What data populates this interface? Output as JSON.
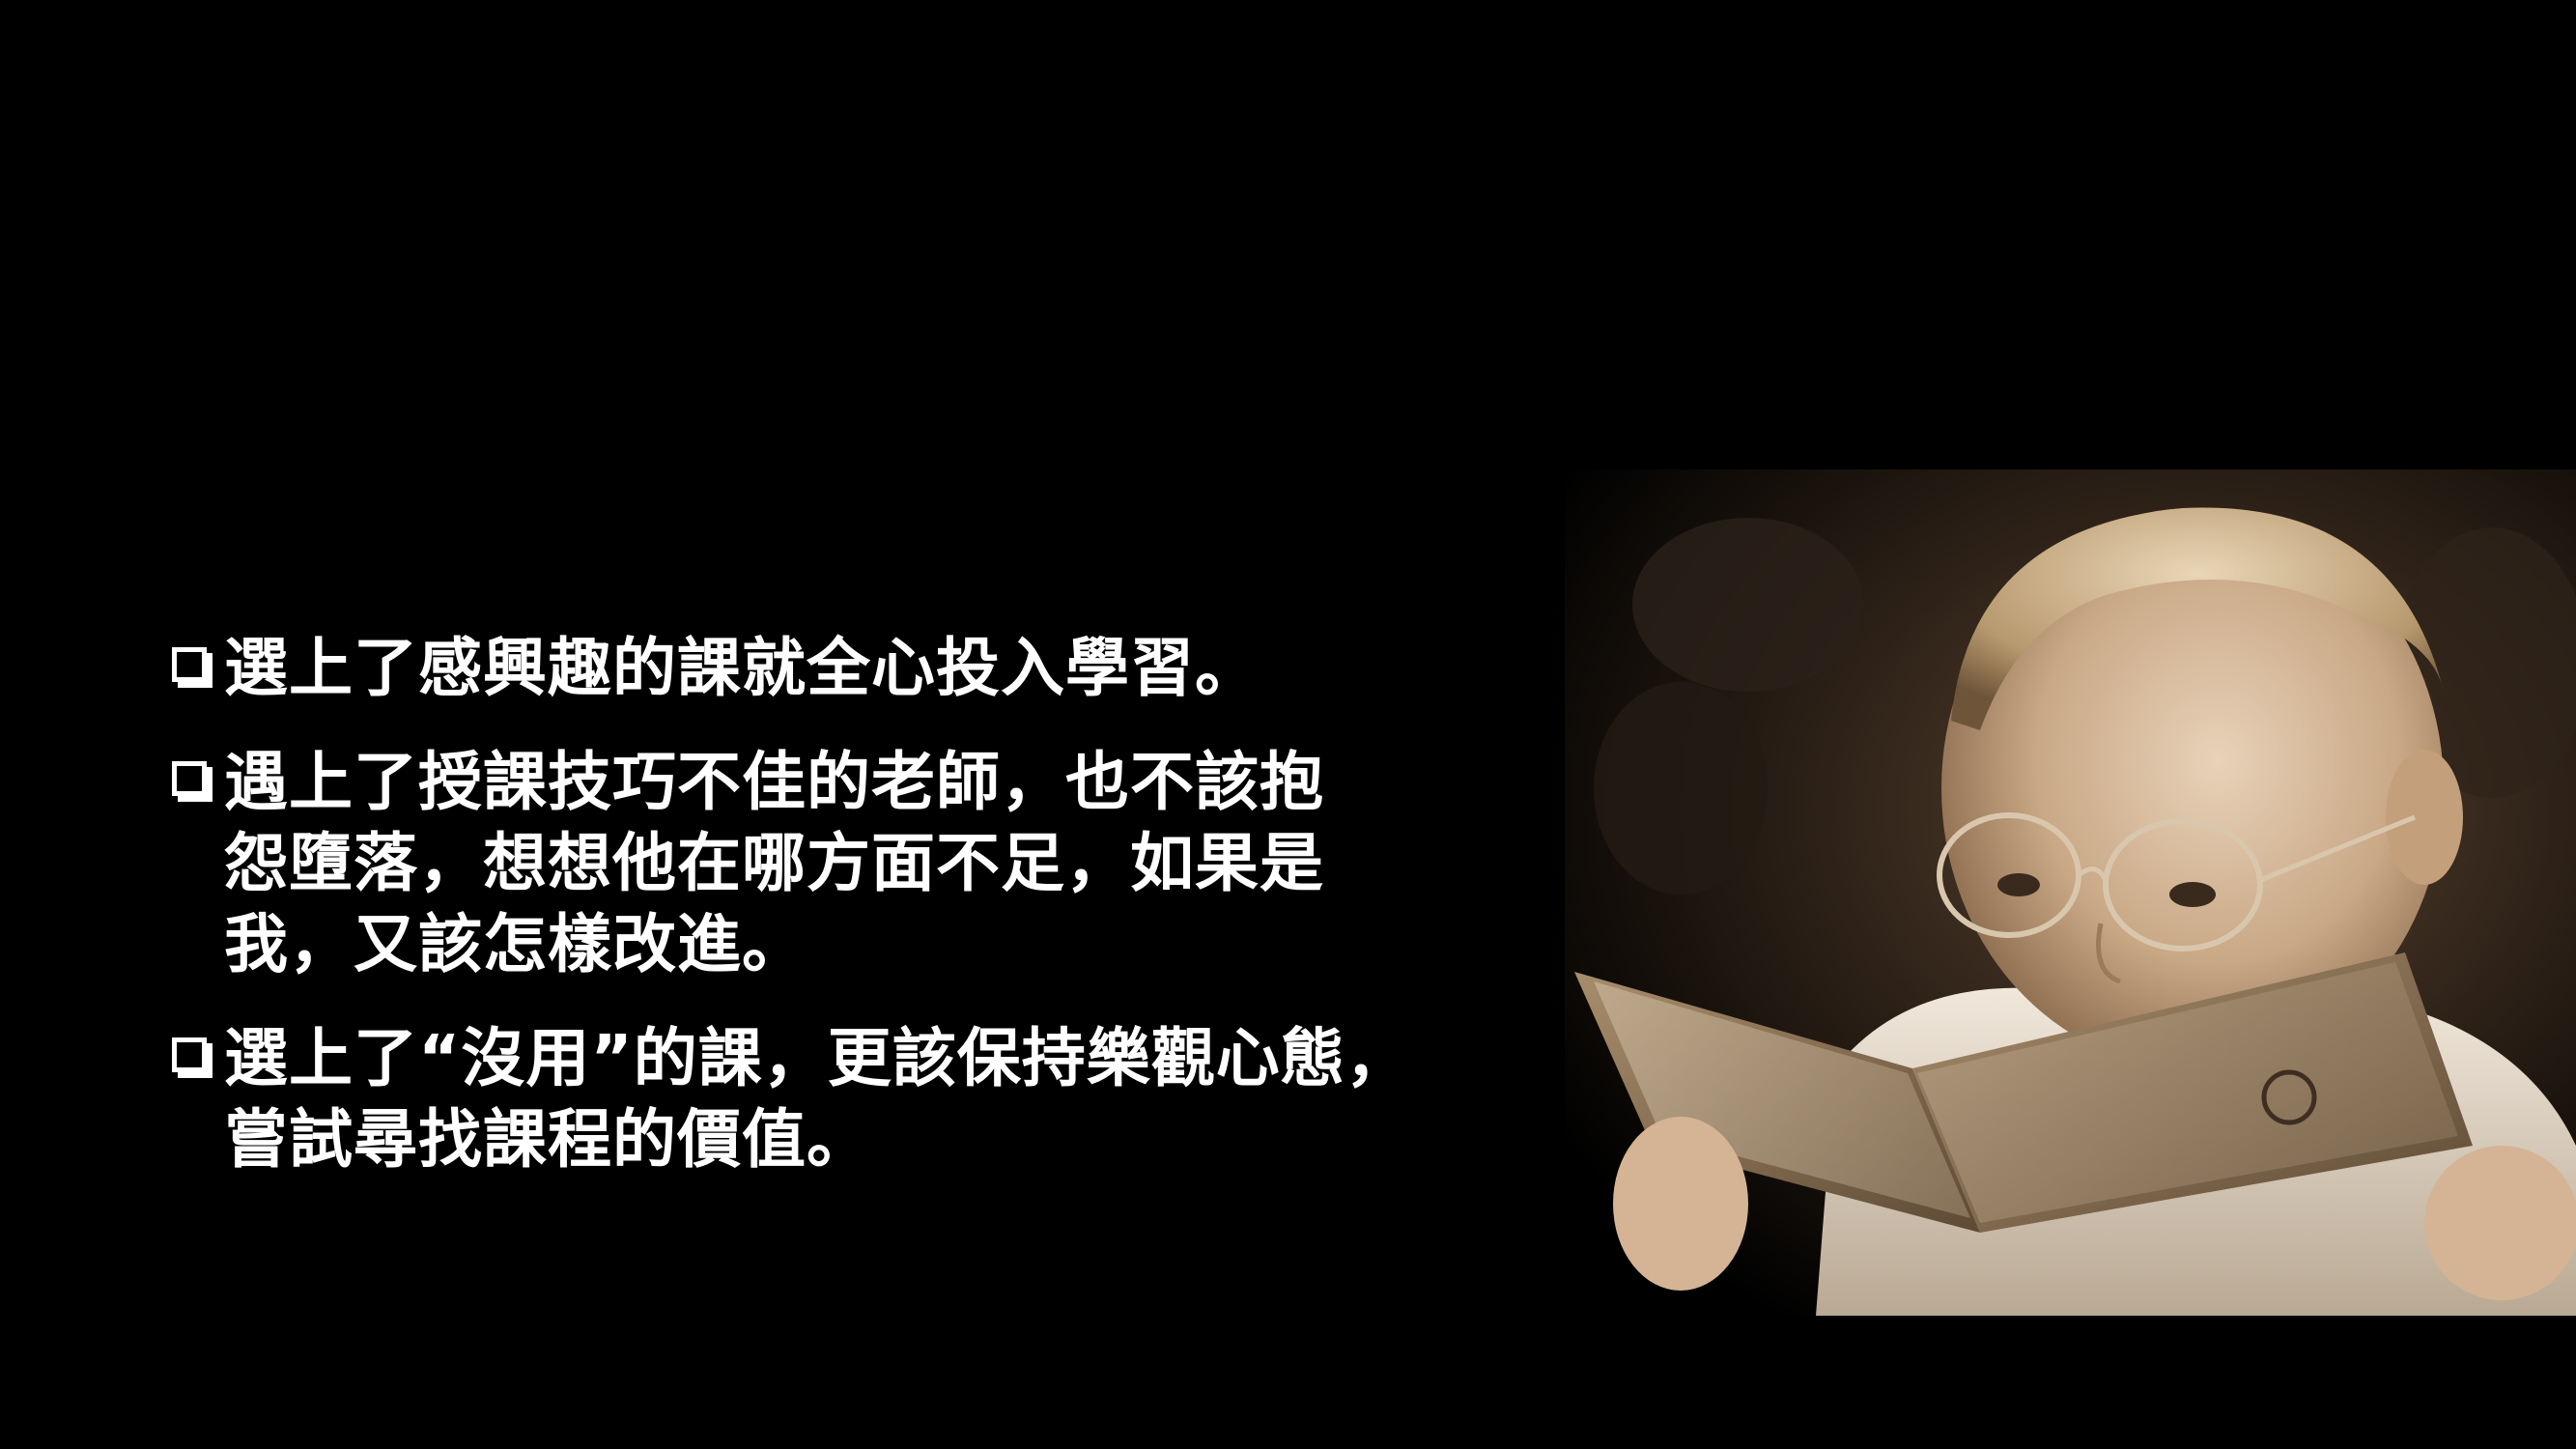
{
  "slide": {
    "background_color": "#000000",
    "text_color": "#ffffff",
    "bullets": [
      {
        "lines": [
          "選上了感興趣的課就全心投入學習。"
        ]
      },
      {
        "lines": [
          "遇上了授課技巧不佳的老師，也不該抱",
          "怨墮落，想想他在哪方面不足，如果是",
          "我，又該怎樣改進。"
        ]
      },
      {
        "lines": [
          "選上了“沒用”的課，更該保持樂觀心態，",
          "嘗試尋找課程的價值。"
        ]
      }
    ],
    "image": {
      "icon": "child-reading-book-with-glasses-photo"
    }
  }
}
